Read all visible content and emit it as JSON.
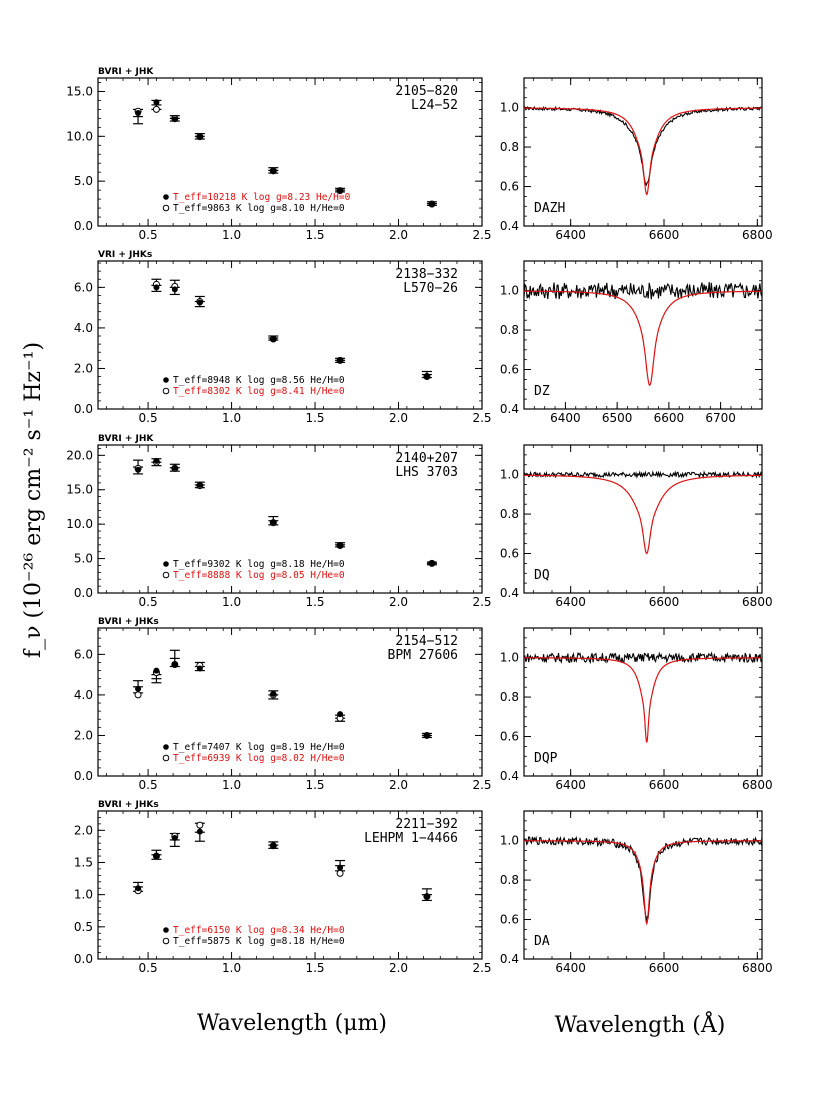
{
  "xlabel_left": "Wavelength (μm)",
  "xlabel_right": "Wavelength (Å)",
  "ylabel": "f_ν (10⁻²⁶ erg cm⁻² s⁻¹ Hz⁻¹)",
  "colors": {
    "model_a": "#000000",
    "model_b": "#dd1111",
    "observed": "#000000"
  },
  "chart_data": [
    {
      "type": "scatter",
      "bands": "BVRI + JHK",
      "star_id": "2105−820",
      "star_name": "L24−52",
      "xlim": [
        0.2,
        2.5
      ],
      "ylim": [
        0,
        16.5
      ],
      "xticks": [
        0.5,
        1.0,
        1.5,
        2.0,
        2.5
      ],
      "yticks": [
        0,
        5,
        10,
        15
      ],
      "ytick_labels": [
        "0.0",
        "5.0",
        "10.0",
        "15.0"
      ],
      "observed": {
        "x": [
          0.44,
          0.55,
          0.66,
          0.81,
          1.25,
          1.65,
          2.2
        ],
        "y": [
          12.2,
          13.5,
          12.0,
          10.0,
          6.2,
          4.0,
          2.5
        ],
        "err": [
          0.8,
          0.5,
          0.3,
          0.3,
          0.3,
          0.2,
          0.2
        ]
      },
      "filled": {
        "y": [
          12.6,
          13.8,
          11.9,
          10.0,
          6.1,
          3.9,
          2.4
        ]
      },
      "open": {
        "y": [
          12.8,
          13.0,
          12.0,
          9.95,
          6.15,
          3.95,
          2.45
        ]
      },
      "legend": [
        {
          "symbol": "filled",
          "text": "T_eff=10218 K  log g=8.23  He/H=0",
          "color": "#dd1111"
        },
        {
          "symbol": "open",
          "text": "T_eff=9863 K  log g=8.10  H/He=0",
          "color": "#000000"
        }
      ],
      "spectrum": {
        "type": "line",
        "spectral_type": "DAZH",
        "xlim": [
          6300,
          6810
        ],
        "ylim": [
          0.4,
          1.15
        ],
        "xticks": [
          6400,
          6600,
          6800
        ],
        "yticks": [
          0.4,
          0.6,
          0.8,
          1.0
        ],
        "ytick_labels": [
          "0.4",
          "0.6",
          "0.8",
          "1.0"
        ],
        "center": 6563,
        "model_depth": 0.44,
        "model_width": 24,
        "model_core": 5,
        "obs_depth": 0.39,
        "obs_width": 32,
        "noise": 0.004
      }
    },
    {
      "type": "scatter",
      "bands": "VRI + JHKs",
      "star_id": "2138−332",
      "star_name": "L570−26",
      "xlim": [
        0.2,
        2.5
      ],
      "ylim": [
        0,
        7.3
      ],
      "xticks": [
        0.5,
        1.0,
        1.5,
        2.0,
        2.5
      ],
      "yticks": [
        0,
        2,
        4,
        6
      ],
      "ytick_labels": [
        "0.0",
        "2.0",
        "4.0",
        "6.0"
      ],
      "observed": {
        "x": [
          0.55,
          0.66,
          0.81,
          1.25,
          1.65,
          2.17
        ],
        "y": [
          6.1,
          6.0,
          5.3,
          3.5,
          2.4,
          1.7
        ],
        "err": [
          0.3,
          0.35,
          0.25,
          0.1,
          0.1,
          0.15
        ]
      },
      "filled": {
        "y": [
          6.0,
          5.9,
          5.25,
          3.45,
          2.4,
          1.6
        ]
      },
      "open": {
        "y": [
          6.15,
          6.05,
          5.3,
          3.45,
          2.4,
          1.6
        ]
      },
      "legend": [
        {
          "symbol": "filled",
          "text": "T_eff=8948 K  log g=8.56  He/H=0",
          "color": "#000000"
        },
        {
          "symbol": "open",
          "text": "T_eff=8302 K  log g=8.41  H/He=0",
          "color": "#dd1111"
        }
      ],
      "spectrum": {
        "type": "line",
        "spectral_type": "DZ",
        "xlim": [
          6320,
          6780
        ],
        "ylim": [
          0.4,
          1.15
        ],
        "xticks": [
          6400,
          6500,
          6600,
          6700
        ],
        "yticks": [
          0.4,
          0.6,
          0.8,
          1.0
        ],
        "ytick_labels": [
          "0.4",
          "0.6",
          "0.8",
          "1.0"
        ],
        "center": 6563,
        "model_depth": 0.48,
        "model_width": 22,
        "model_core": 6,
        "obs_depth": 0.0,
        "obs_width": 30,
        "noise": 0.022
      }
    },
    {
      "type": "scatter",
      "bands": "BVRI + JHK",
      "star_id": "2140+207",
      "star_name": "LHS 3703",
      "xlim": [
        0.2,
        2.5
      ],
      "ylim": [
        0,
        21.5
      ],
      "xticks": [
        0.5,
        1.0,
        1.5,
        2.0,
        2.5
      ],
      "yticks": [
        0,
        5,
        10,
        15,
        20
      ],
      "ytick_labels": [
        "0.0",
        "5.0",
        "10.0",
        "15.0",
        "20.0"
      ],
      "observed": {
        "x": [
          0.44,
          0.55,
          0.66,
          0.81,
          1.25,
          1.65,
          2.2
        ],
        "y": [
          18.3,
          19.0,
          18.2,
          15.7,
          10.5,
          7.0,
          4.3
        ],
        "err": [
          1.0,
          0.5,
          0.5,
          0.4,
          0.6,
          0.3,
          0.2
        ]
      },
      "filled": {
        "y": [
          17.9,
          19.2,
          18.2,
          15.7,
          10.3,
          6.9,
          4.3
        ]
      },
      "open": {
        "y": [
          18.1,
          19.0,
          18.1,
          15.6,
          10.2,
          6.9,
          4.3
        ]
      },
      "legend": [
        {
          "symbol": "filled",
          "text": "T_eff=9302 K  log g=8.18  He/H=0",
          "color": "#000000"
        },
        {
          "symbol": "open",
          "text": "T_eff=8888 K  log g=8.05  H/He=0",
          "color": "#dd1111"
        }
      ],
      "spectrum": {
        "type": "line",
        "spectral_type": "DQ",
        "xlim": [
          6300,
          6810
        ],
        "ylim": [
          0.4,
          1.15
        ],
        "xticks": [
          6400,
          6600,
          6800
        ],
        "yticks": [
          0.4,
          0.6,
          0.8,
          1.0
        ],
        "ytick_labels": [
          "0.4",
          "0.6",
          "0.8",
          "1.0"
        ],
        "center": 6563,
        "model_depth": 0.4,
        "model_width": 30,
        "model_core": 6,
        "obs_depth": 0.0,
        "obs_width": 30,
        "noise": 0.006
      }
    },
    {
      "type": "scatter",
      "bands": "BVRI + JHKs",
      "star_id": "2154−512",
      "star_name": "BPM 27606",
      "xlim": [
        0.2,
        2.5
      ],
      "ylim": [
        0,
        7.3
      ],
      "xticks": [
        0.5,
        1.0,
        1.5,
        2.0,
        2.5
      ],
      "yticks": [
        0,
        2,
        4,
        6
      ],
      "ytick_labels": [
        "0.0",
        "2.0",
        "4.0",
        "6.0"
      ],
      "observed": {
        "x": [
          0.44,
          0.55,
          0.66,
          0.81,
          1.25,
          1.65,
          2.17
        ],
        "y": [
          4.4,
          4.8,
          5.8,
          5.4,
          4.0,
          2.85,
          2.0
        ],
        "err": [
          0.3,
          0.2,
          0.4,
          0.2,
          0.2,
          0.15,
          0.1
        ]
      },
      "filled": {
        "y": [
          4.3,
          5.2,
          5.5,
          5.3,
          4.05,
          3.05,
          2.0
        ]
      },
      "open": {
        "y": [
          4.0,
          5.1,
          5.5,
          5.45,
          4.0,
          2.85,
          2.0
        ]
      },
      "legend": [
        {
          "symbol": "filled",
          "text": "T_eff=7407 K  log g=8.19  He/H=0",
          "color": "#000000"
        },
        {
          "symbol": "open",
          "text": "T_eff=6939 K  log g=8.02  H/He=0",
          "color": "#dd1111"
        }
      ],
      "spectrum": {
        "type": "line",
        "spectral_type": "DQP",
        "xlim": [
          6300,
          6810
        ],
        "ylim": [
          0.4,
          1.15
        ],
        "xticks": [
          6400,
          6600,
          6800
        ],
        "yticks": [
          0.4,
          0.6,
          0.8,
          1.0
        ],
        "ytick_labels": [
          "0.4",
          "0.6",
          "0.8",
          "1.0"
        ],
        "center": 6563,
        "model_depth": 0.43,
        "model_width": 16,
        "model_core": 3,
        "obs_depth": 0.0,
        "obs_width": 30,
        "noise": 0.012
      }
    },
    {
      "type": "scatter",
      "bands": "BVRI + JHKs",
      "star_id": "2211−392",
      "star_name": "LEHPM 1−4466",
      "xlim": [
        0.2,
        2.5
      ],
      "ylim": [
        0,
        2.3
      ],
      "xticks": [
        0.5,
        1.0,
        1.5,
        2.0,
        2.5
      ],
      "yticks": [
        0,
        0.5,
        1.0,
        1.5,
        2.0
      ],
      "ytick_labels": [
        "0.0",
        "0.5",
        "1.0",
        "1.5",
        "2.0"
      ],
      "observed": {
        "x": [
          0.44,
          0.55,
          0.66,
          0.81,
          1.25,
          1.65,
          2.17
        ],
        "y": [
          1.12,
          1.62,
          1.85,
          1.97,
          1.77,
          1.45,
          1.0
        ],
        "err": [
          0.07,
          0.07,
          0.1,
          0.14,
          0.05,
          0.08,
          0.09
        ]
      },
      "filled": {
        "y": [
          1.1,
          1.6,
          1.88,
          1.98,
          1.76,
          1.42,
          0.97
        ]
      },
      "open": {
        "y": [
          1.06,
          1.6,
          1.91,
          2.08,
          1.76,
          1.33,
          0.97
        ]
      },
      "legend": [
        {
          "symbol": "filled",
          "text": "T_eff=6150 K  log g=8.34  He/H=0",
          "color": "#dd1111"
        },
        {
          "symbol": "open",
          "text": "T_eff=5875 K  log g=8.18  H/He=0",
          "color": "#000000"
        }
      ],
      "spectrum": {
        "type": "line",
        "spectral_type": "DA",
        "xlim": [
          6300,
          6810
        ],
        "ylim": [
          0.4,
          1.15
        ],
        "xticks": [
          6400,
          6600,
          6800
        ],
        "yticks": [
          0.4,
          0.6,
          0.8,
          1.0
        ],
        "ytick_labels": [
          "0.4",
          "0.6",
          "0.8",
          "1.0"
        ],
        "center": 6563,
        "model_depth": 0.42,
        "model_width": 14,
        "model_core": 4,
        "obs_depth": 0.4,
        "obs_width": 16,
        "noise": 0.01
      }
    }
  ]
}
